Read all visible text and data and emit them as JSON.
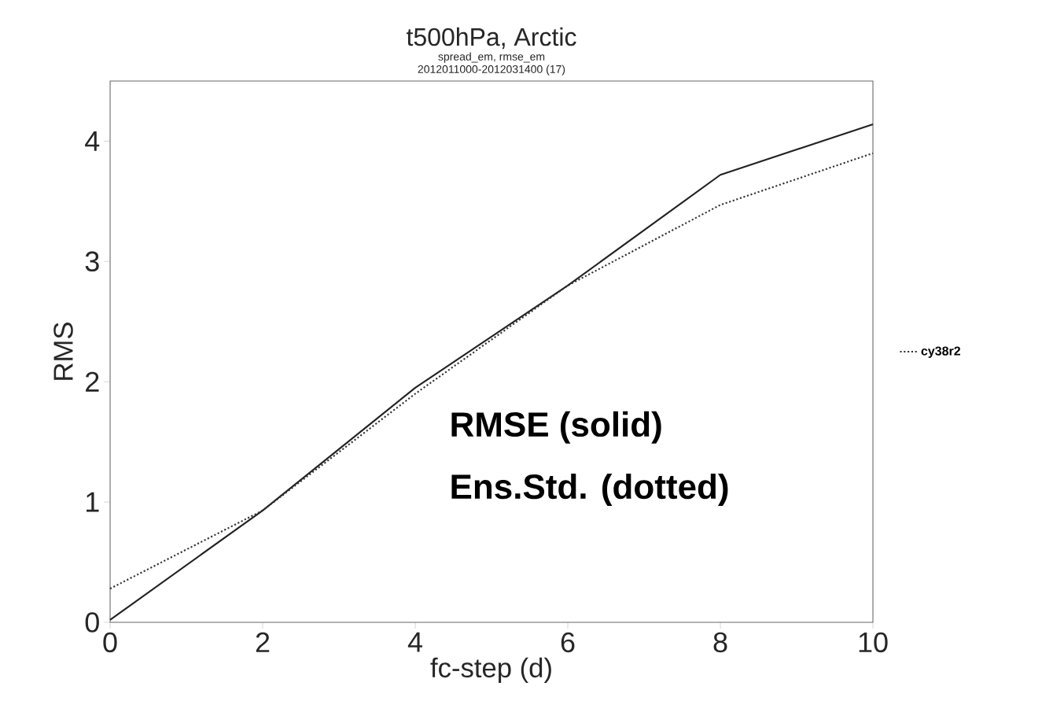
{
  "chart_data": {
    "type": "line",
    "title": "t500hPa,  Arctic",
    "subtitle": "spread_em, rmse_em",
    "xlabel": "fc-step (d)",
    "ylabel": "RMS",
    "x": [
      0,
      2,
      4,
      6,
      8,
      10
    ],
    "series": [
      {
        "color": "#222222",
        "line_style": "solid",
        "values": [
          0.02,
          0.93,
          1.95,
          2.8,
          3.72,
          4.14
        ]
      },
      {
        "name": "cy38r2",
        "color": "#333333",
        "line_style": "dotted",
        "values": [
          0.28,
          0.93,
          1.9,
          2.8,
          3.47,
          3.9
        ]
      }
    ],
    "xlim": [
      0,
      10
    ],
    "ylim": [
      0,
      4.5
    ],
    "xticks": [
      0,
      2,
      4,
      6,
      8,
      10
    ],
    "yticks": [
      0,
      1,
      2,
      3,
      4
    ],
    "legend": "right",
    "grid": false,
    "annotations": [
      "2012011000-2012031400 (17)",
      "RMSE (solid)",
      "Ens.Std. (dotted)"
    ]
  }
}
